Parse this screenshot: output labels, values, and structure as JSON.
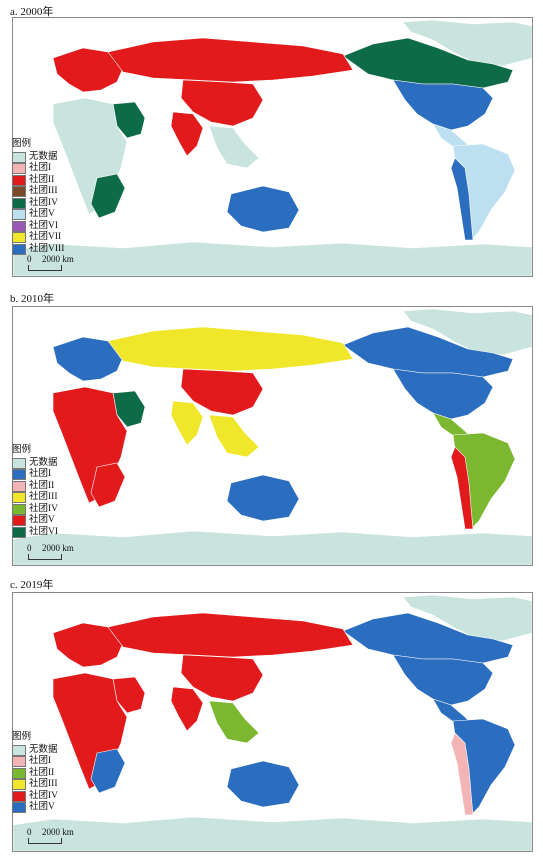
{
  "panels": [
    {
      "title": "a. 2000年",
      "legend_title": "图例",
      "legend": [
        {
          "label": "无数据",
          "color": "#c9e4de"
        },
        {
          "label": "社团I",
          "color": "#f2b4b4"
        },
        {
          "label": "社团II",
          "color": "#e31a1c"
        },
        {
          "label": "社团III",
          "color": "#7a4b2a"
        },
        {
          "label": "社团IV",
          "color": "#0e6b47"
        },
        {
          "label": "社团V",
          "color": "#bde0f0"
        },
        {
          "label": "社团VI",
          "color": "#9b59b6"
        },
        {
          "label": "社团VII",
          "color": "#f0e62a"
        },
        {
          "label": "社团VIII",
          "color": "#2b6ec0"
        }
      ],
      "scale_zero": "0",
      "scale_label": "2000 km",
      "regions": {
        "north_america": "#0e6b47",
        "usa": "#2b6ec0",
        "central_america": "#bde0f0",
        "south_america": "#bde0f0",
        "andes": "#2b6ec0",
        "russia": "#e31a1c",
        "china": "#e31a1c",
        "europe": "#e31a1c",
        "africa": "#c9e4de",
        "southern_africa": "#0e6b47",
        "arabia": "#0e6b47",
        "india": "#e31a1c",
        "southeast_asia": "#c9e4de",
        "australia": "#2b6ec0",
        "greenland": "#c9e4de",
        "antarctica": "#c9e4de"
      }
    },
    {
      "title": "b. 2010年",
      "legend_title": "图例",
      "legend": [
        {
          "label": "无数据",
          "color": "#c9e4de"
        },
        {
          "label": "社团I",
          "color": "#2b6ec0"
        },
        {
          "label": "社团II",
          "color": "#f2b4b4"
        },
        {
          "label": "社团III",
          "color": "#f0e62a"
        },
        {
          "label": "社团IV",
          "color": "#7cb82f"
        },
        {
          "label": "社团V",
          "color": "#e31a1c"
        },
        {
          "label": "社团VI",
          "color": "#0e6b47"
        }
      ],
      "scale_zero": "0",
      "scale_label": "2000 km",
      "regions": {
        "north_america": "#2b6ec0",
        "usa": "#2b6ec0",
        "central_america": "#7cb82f",
        "south_america": "#7cb82f",
        "andes": "#e31a1c",
        "russia": "#f0e62a",
        "china": "#e31a1c",
        "europe": "#2b6ec0",
        "africa": "#e31a1c",
        "southern_africa": "#e31a1c",
        "arabia": "#0e6b47",
        "india": "#f0e62a",
        "southeast_asia": "#f0e62a",
        "australia": "#2b6ec0",
        "greenland": "#c9e4de",
        "antarctica": "#c9e4de"
      }
    },
    {
      "title": "c. 2019年",
      "legend_title": "图例",
      "legend": [
        {
          "label": "无数据",
          "color": "#c9e4de"
        },
        {
          "label": "社团I",
          "color": "#f2b4b4"
        },
        {
          "label": "社团II",
          "color": "#7cb82f"
        },
        {
          "label": "社团III",
          "color": "#f0e62a"
        },
        {
          "label": "社团IV",
          "color": "#e31a1c"
        },
        {
          "label": "社团V",
          "color": "#2b6ec0"
        }
      ],
      "scale_zero": "0",
      "scale_label": "2000 km",
      "regions": {
        "north_america": "#2b6ec0",
        "usa": "#2b6ec0",
        "central_america": "#2b6ec0",
        "south_america": "#2b6ec0",
        "andes": "#f2b4b4",
        "russia": "#e31a1c",
        "china": "#e31a1c",
        "europe": "#e31a1c",
        "africa": "#e31a1c",
        "southern_africa": "#2b6ec0",
        "arabia": "#e31a1c",
        "india": "#e31a1c",
        "southeast_asia": "#7cb82f",
        "australia": "#2b6ec0",
        "greenland": "#c9e4de",
        "antarctica": "#c9e4de"
      }
    }
  ]
}
